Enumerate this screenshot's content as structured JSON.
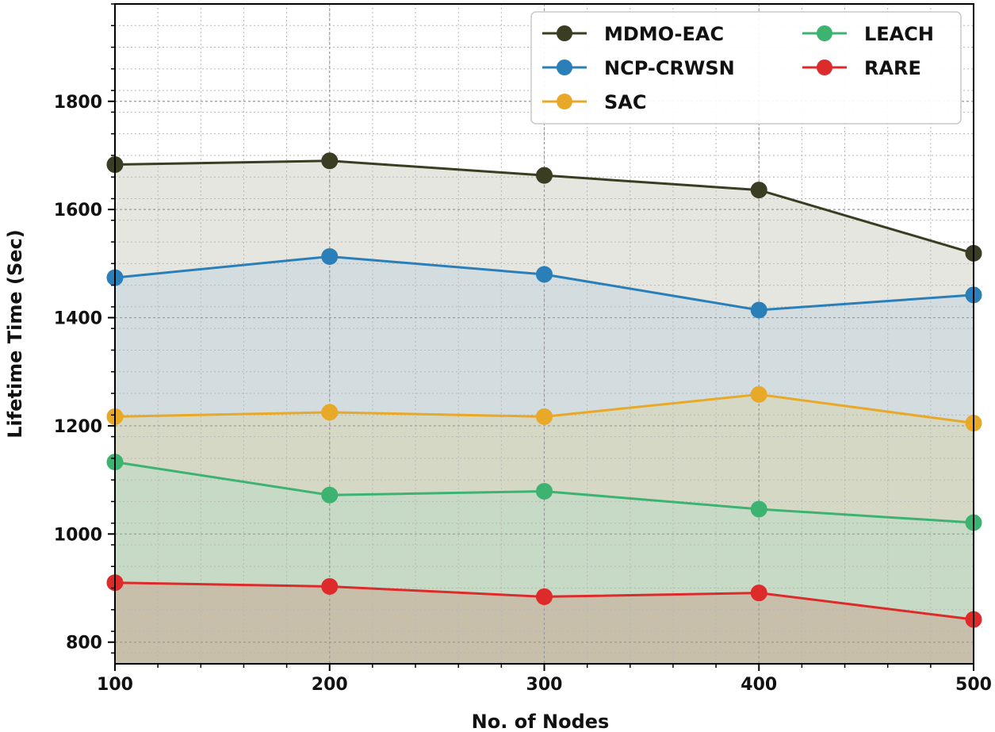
{
  "chart_data": {
    "type": "area",
    "title": "",
    "xlabel": "No. of Nodes",
    "ylabel": "Lifetime Time (Sec)",
    "x": [
      100,
      200,
      300,
      400,
      500
    ],
    "xlim": [
      100,
      500
    ],
    "ylim": [
      760,
      1980
    ],
    "xticks": [
      "100",
      "200",
      "300",
      "400",
      "500"
    ],
    "yticks": [
      "800",
      "1000",
      "1200",
      "1400",
      "1600",
      "1800"
    ],
    "ytick_values": [
      800,
      1000,
      1200,
      1400,
      1600,
      1800
    ],
    "grid": true,
    "legend_position": "top-right",
    "series": [
      {
        "name": "MDMO-EAC",
        "values": [
          1683,
          1690,
          1663,
          1636,
          1519
        ],
        "color": "#3a3d22",
        "fill": "#e5e6df"
      },
      {
        "name": "NCP-CRWSN",
        "values": [
          1474,
          1513,
          1480,
          1414,
          1442
        ],
        "color": "#2a7fb8",
        "fill": "#d3dde0"
      },
      {
        "name": "SAC",
        "values": [
          1217,
          1225,
          1217,
          1258,
          1205
        ],
        "color": "#e8a828",
        "fill": "#d6d8c6"
      },
      {
        "name": "LEACH",
        "values": [
          1133,
          1072,
          1079,
          1046,
          1021
        ],
        "color": "#3cb371",
        "fill": "#c6dac6"
      },
      {
        "name": "RARE",
        "values": [
          910,
          903,
          884,
          891,
          842
        ],
        "color": "#dd2a2a",
        "fill": "#c8bfaa"
      }
    ],
    "legend_columns": [
      [
        "MDMO-EAC",
        "NCP-CRWSN",
        "SAC"
      ],
      [
        "LEACH",
        "RARE"
      ]
    ]
  }
}
